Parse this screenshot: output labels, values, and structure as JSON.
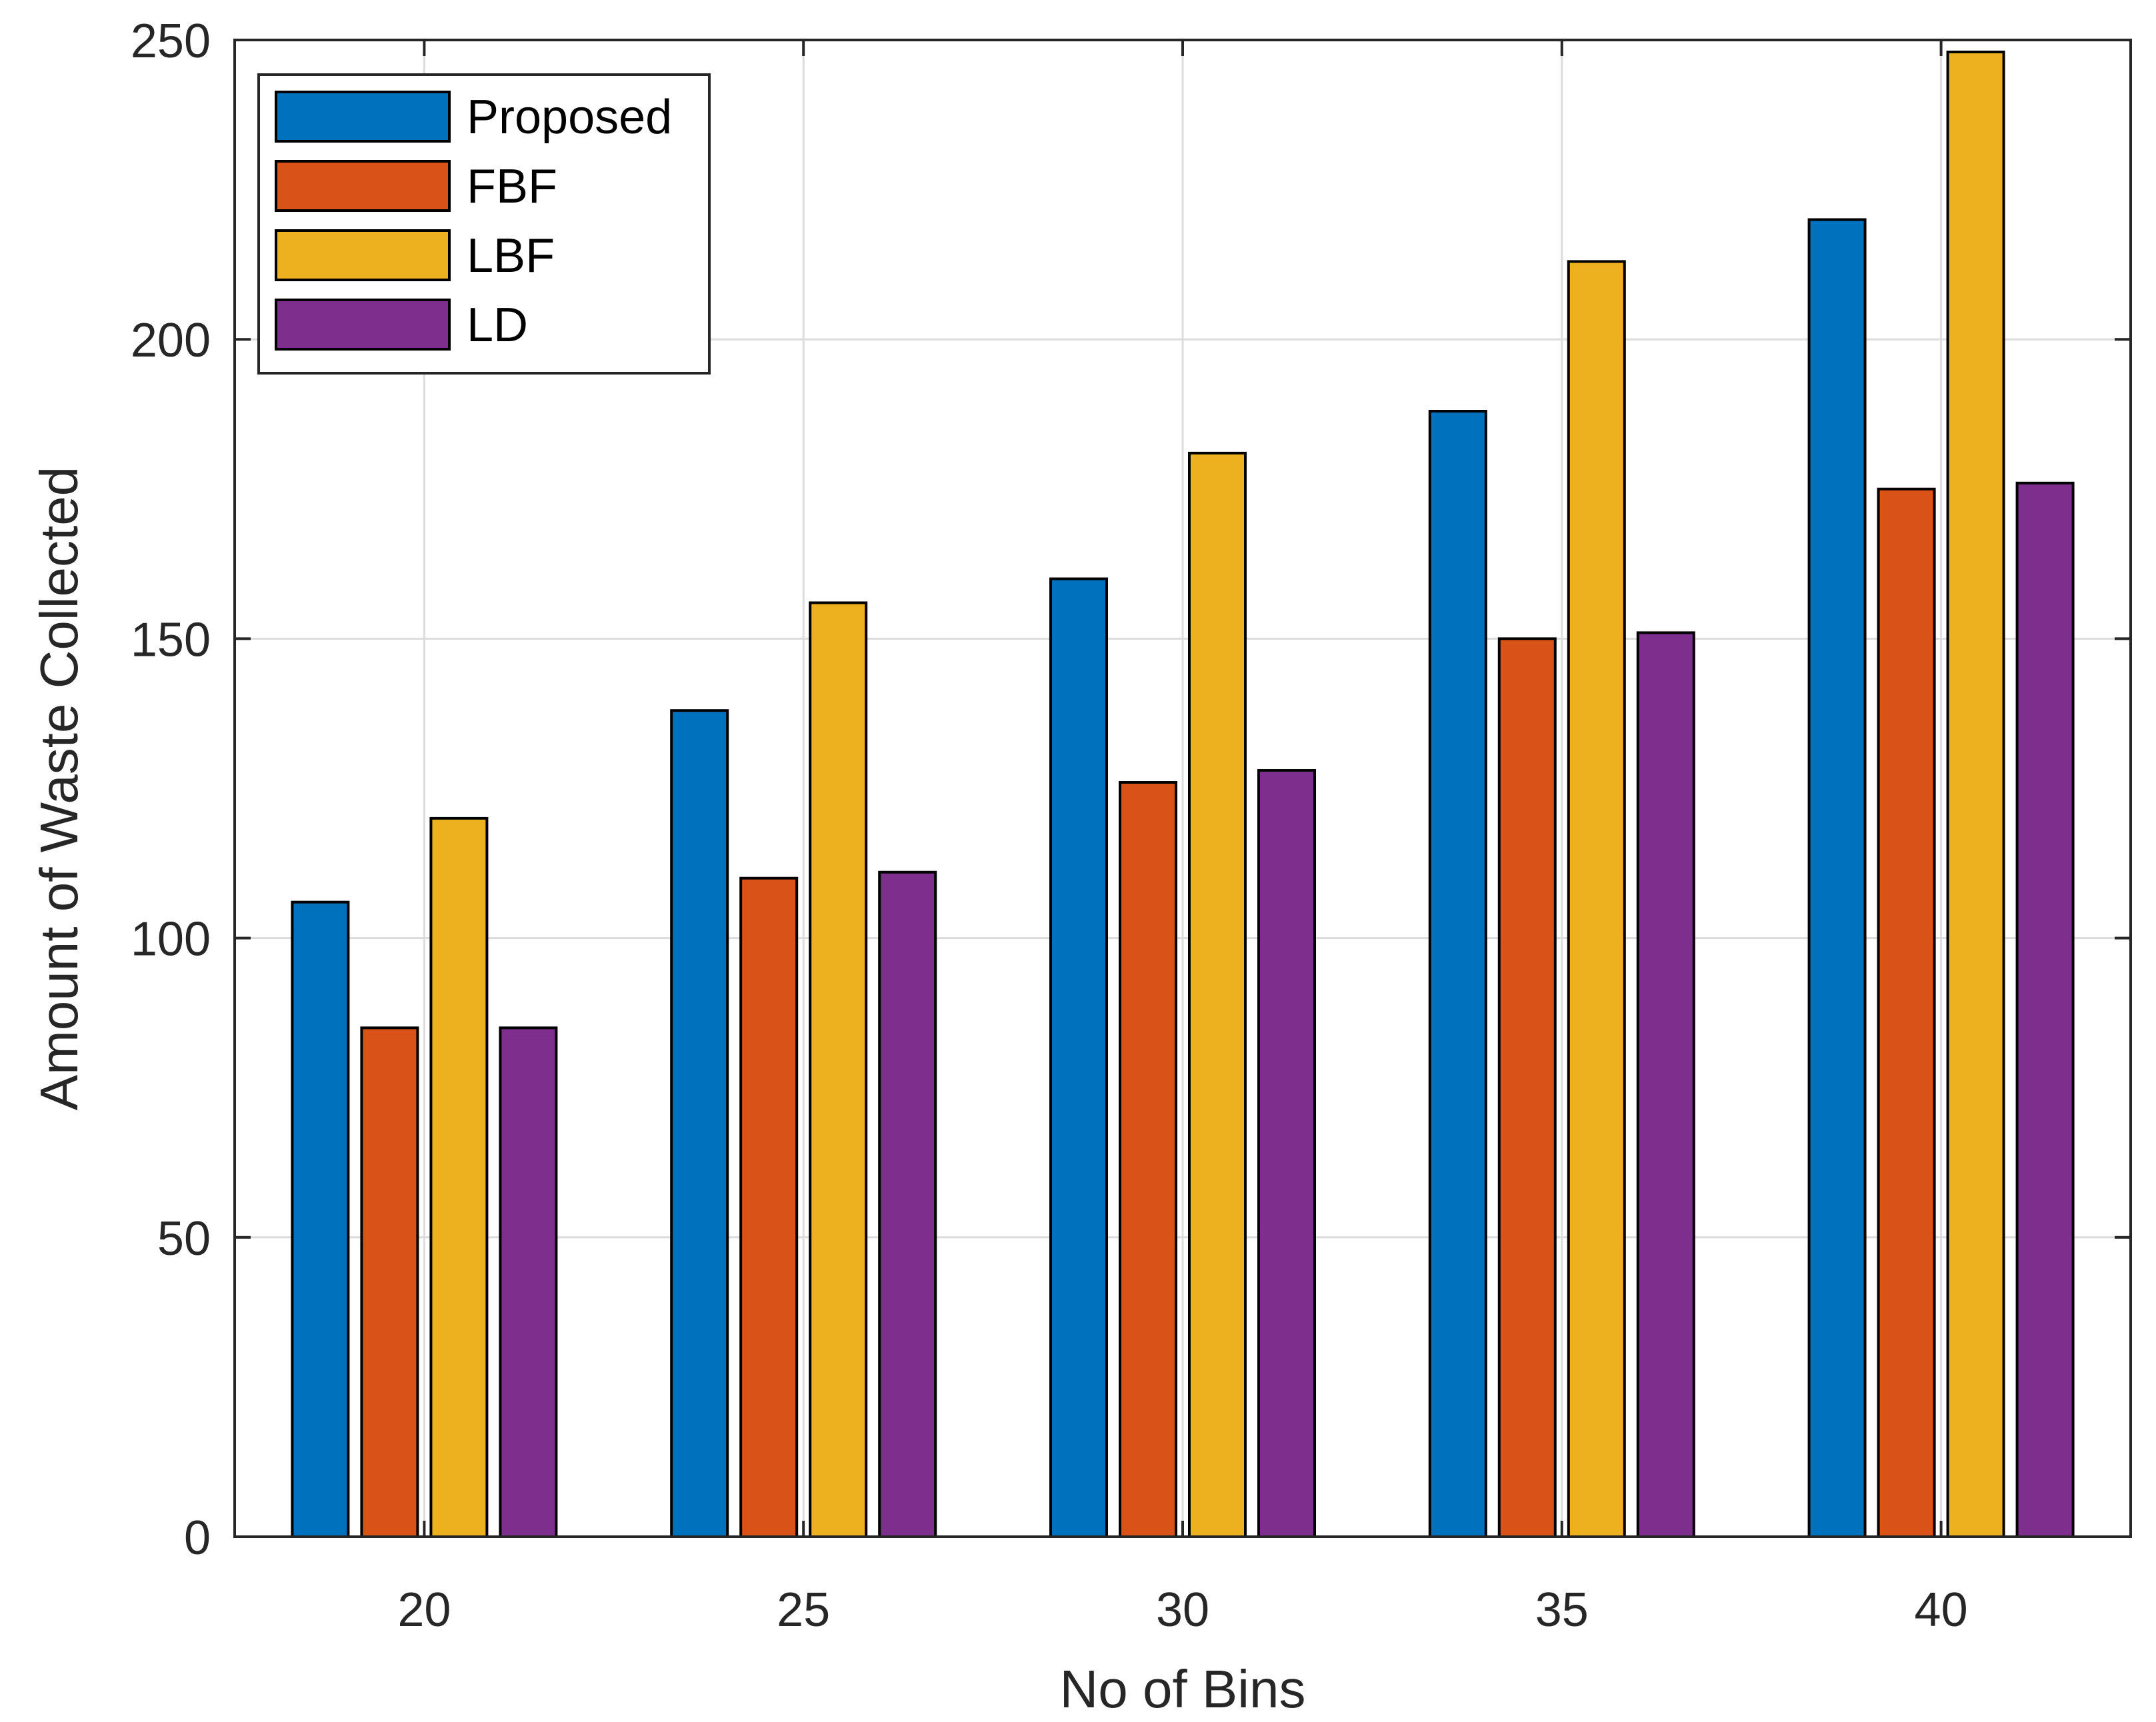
{
  "chart_data": {
    "type": "bar",
    "title": "",
    "xlabel": "No of Bins",
    "ylabel": "Amount of Waste Collected",
    "categories": [
      "20",
      "25",
      "30",
      "35",
      "40"
    ],
    "series": [
      {
        "name": "Proposed",
        "color": "#0072BD",
        "values": [
          106,
          138,
          160,
          188,
          220
        ]
      },
      {
        "name": "FBF",
        "color": "#D95319",
        "values": [
          85,
          110,
          126,
          150,
          175
        ]
      },
      {
        "name": "LBF",
        "color": "#EDB120",
        "values": [
          120,
          156,
          181,
          213,
          248
        ]
      },
      {
        "name": "LD",
        "color": "#7E2F8E",
        "values": [
          85,
          111,
          128,
          151,
          176
        ]
      }
    ],
    "ylim": [
      0,
      250
    ],
    "yticks": [
      0,
      50,
      100,
      150,
      200,
      250
    ],
    "grid": true,
    "legend_position": "top-left"
  }
}
